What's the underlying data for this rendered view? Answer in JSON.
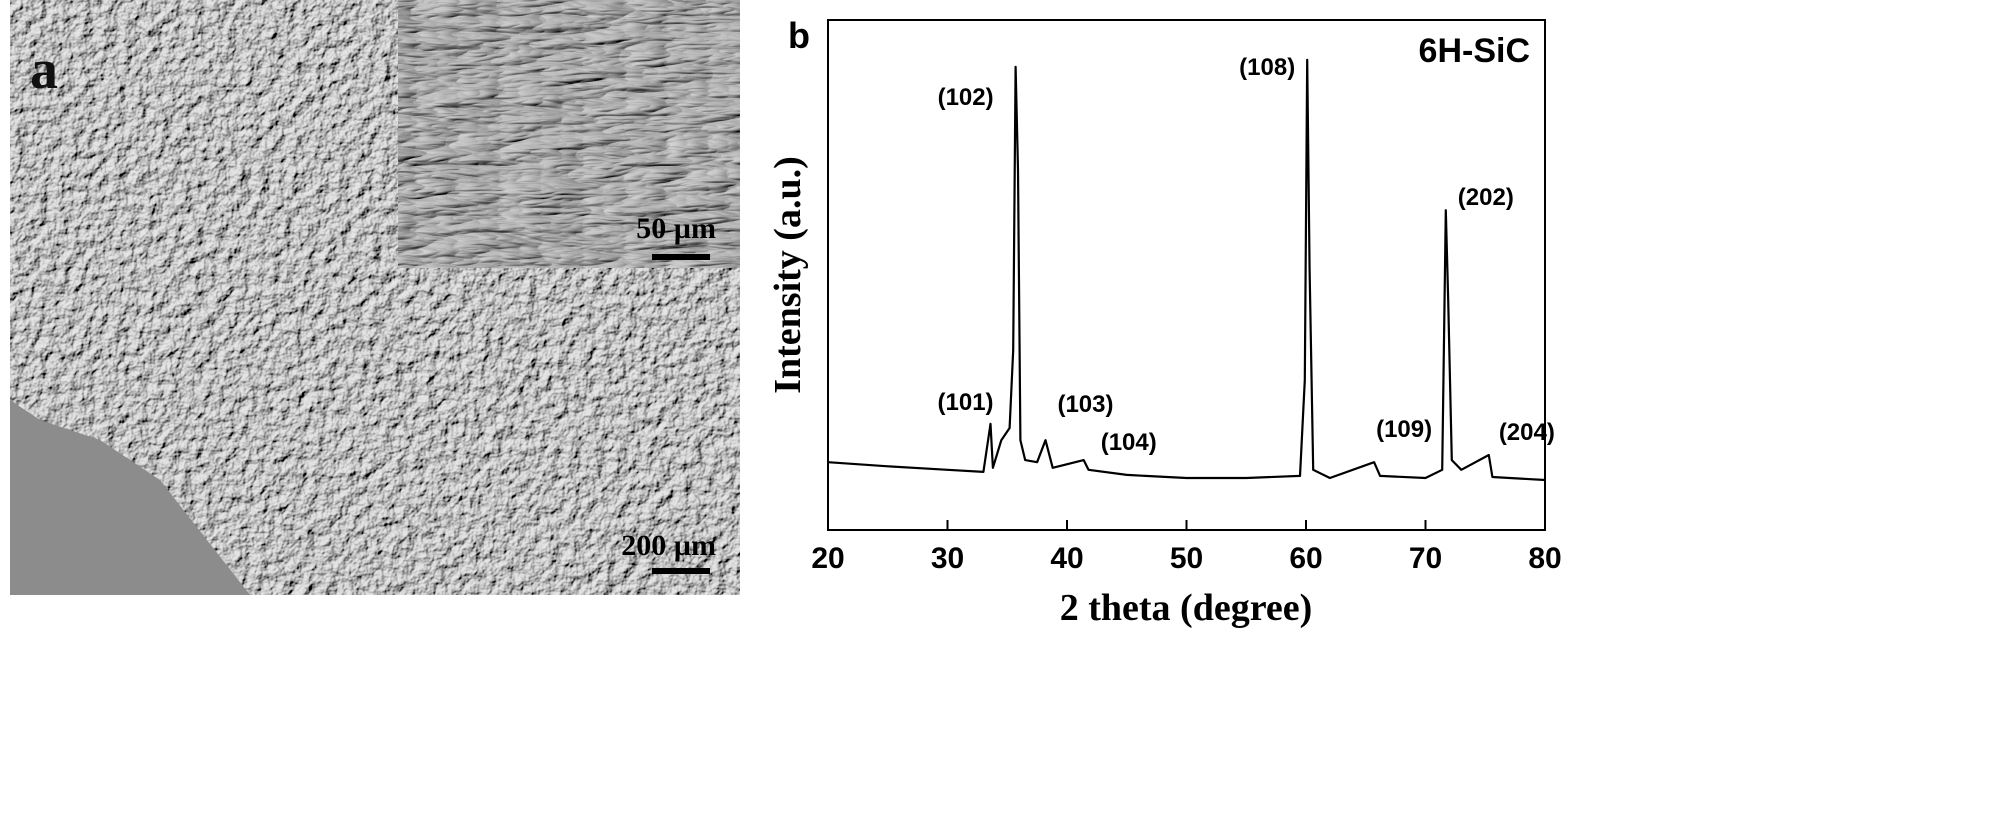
{
  "panel_a": {
    "label": "a",
    "inset_scale_bar": "50 µm",
    "scale_bar": "200 µm"
  },
  "chart_data": {
    "type": "line",
    "panel_label": "b",
    "title": "6H-SiC",
    "x_label": "2 theta (degree)",
    "y_label": "Intensity (a.u.)",
    "x": [
      20,
      25,
      30,
      33,
      33.6,
      33.8,
      34.5,
      35.2,
      35.5,
      35.7,
      35.9,
      36.1,
      36.5,
      37.5,
      38.2,
      38.8,
      41.4,
      41.8,
      45,
      50,
      55,
      59.5,
      59.9,
      60.1,
      60.3,
      60.6,
      62,
      65.7,
      66.2,
      70,
      71.4,
      71.7,
      71.9,
      72.2,
      73,
      75.3,
      75.6,
      80
    ],
    "series": [
      {
        "color": "#000000",
        "values": [
          13.3,
          12.5,
          11.8,
          11.4,
          20.8,
          12.2,
          17.6,
          20,
          35.3,
          90.8,
          70.6,
          17.6,
          13.7,
          13.3,
          17.6,
          12.2,
          13.7,
          11.8,
          10.8,
          10.2,
          10.2,
          10.6,
          29.4,
          92.2,
          51,
          11.8,
          10.2,
          13.3,
          10.6,
          10.2,
          11.8,
          62.7,
          45,
          13.7,
          11.8,
          14.7,
          10.4,
          9.8
        ]
      }
    ],
    "xlim": [
      20,
      80
    ],
    "ylim": [
      0,
      100
    ],
    "xticks": [
      20,
      30,
      40,
      50,
      60,
      70,
      80
    ],
    "annotations": [
      {
        "text": "(101)",
        "x": 33.6
      },
      {
        "text": "(102)",
        "x": 35.7
      },
      {
        "text": "(103)",
        "x": 38.2
      },
      {
        "text": "(104)",
        "x": 41.4
      },
      {
        "text": "(108)",
        "x": 60.1
      },
      {
        "text": "(109)",
        "x": 65.7
      },
      {
        "text": "(202)",
        "x": 71.7
      },
      {
        "text": "(204)",
        "x": 75.3
      }
    ]
  }
}
